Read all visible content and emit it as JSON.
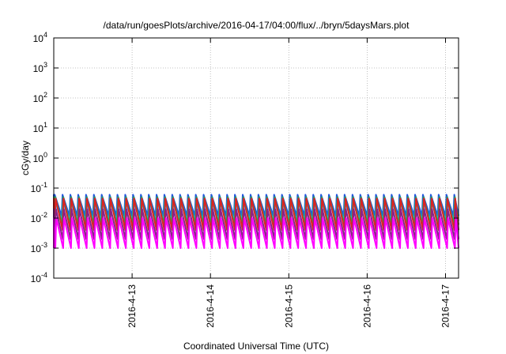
{
  "chart_data": {
    "type": "line",
    "title": "/data/run/goesPlots/archive/2016-04-17/04:00/flux/../bryn/5daysMars.plot",
    "xlabel": "Coordinated Universal Time (UTC)",
    "ylabel": "cGy/day",
    "y_scale": "log",
    "ylim": [
      0.0001,
      10000
    ],
    "y_ticks": [
      {
        "value": 0.0001,
        "base": "10",
        "exp": "-4"
      },
      {
        "value": 0.001,
        "base": "10",
        "exp": "-3"
      },
      {
        "value": 0.01,
        "base": "10",
        "exp": "-2"
      },
      {
        "value": 0.1,
        "base": "10",
        "exp": "-1"
      },
      {
        "value": 1,
        "base": "10",
        "exp": "0"
      },
      {
        "value": 10,
        "base": "10",
        "exp": "1"
      },
      {
        "value": 100,
        "base": "10",
        "exp": "2"
      },
      {
        "value": 1000,
        "base": "10",
        "exp": "3"
      },
      {
        "value": 10000,
        "base": "10",
        "exp": "4"
      }
    ],
    "xlim": [
      "2016-04-12 00:00",
      "2016-04-17 04:00"
    ],
    "x_ticks": [
      "2016-4-13",
      "2016-4-14",
      "2016-4-15",
      "2016-4-16",
      "2016-4-17"
    ],
    "grid": true,
    "legend": "none",
    "cycle_period_hours": 2.4,
    "series": [
      {
        "color": "#2255dd",
        "peak": 0.06,
        "trough": 0.012
      },
      {
        "color": "#00c8e0",
        "peak": 0.035,
        "trough": 0.008
      },
      {
        "color": "#22aa55",
        "peak": 0.05,
        "trough": 0.006
      },
      {
        "color": "#dd2222",
        "peak": 0.045,
        "trough": 0.004
      },
      {
        "color": "#882288",
        "peak": 0.02,
        "trough": 0.002
      },
      {
        "color": "#ff00ff",
        "peak": 0.01,
        "trough": 0.001
      }
    ]
  }
}
